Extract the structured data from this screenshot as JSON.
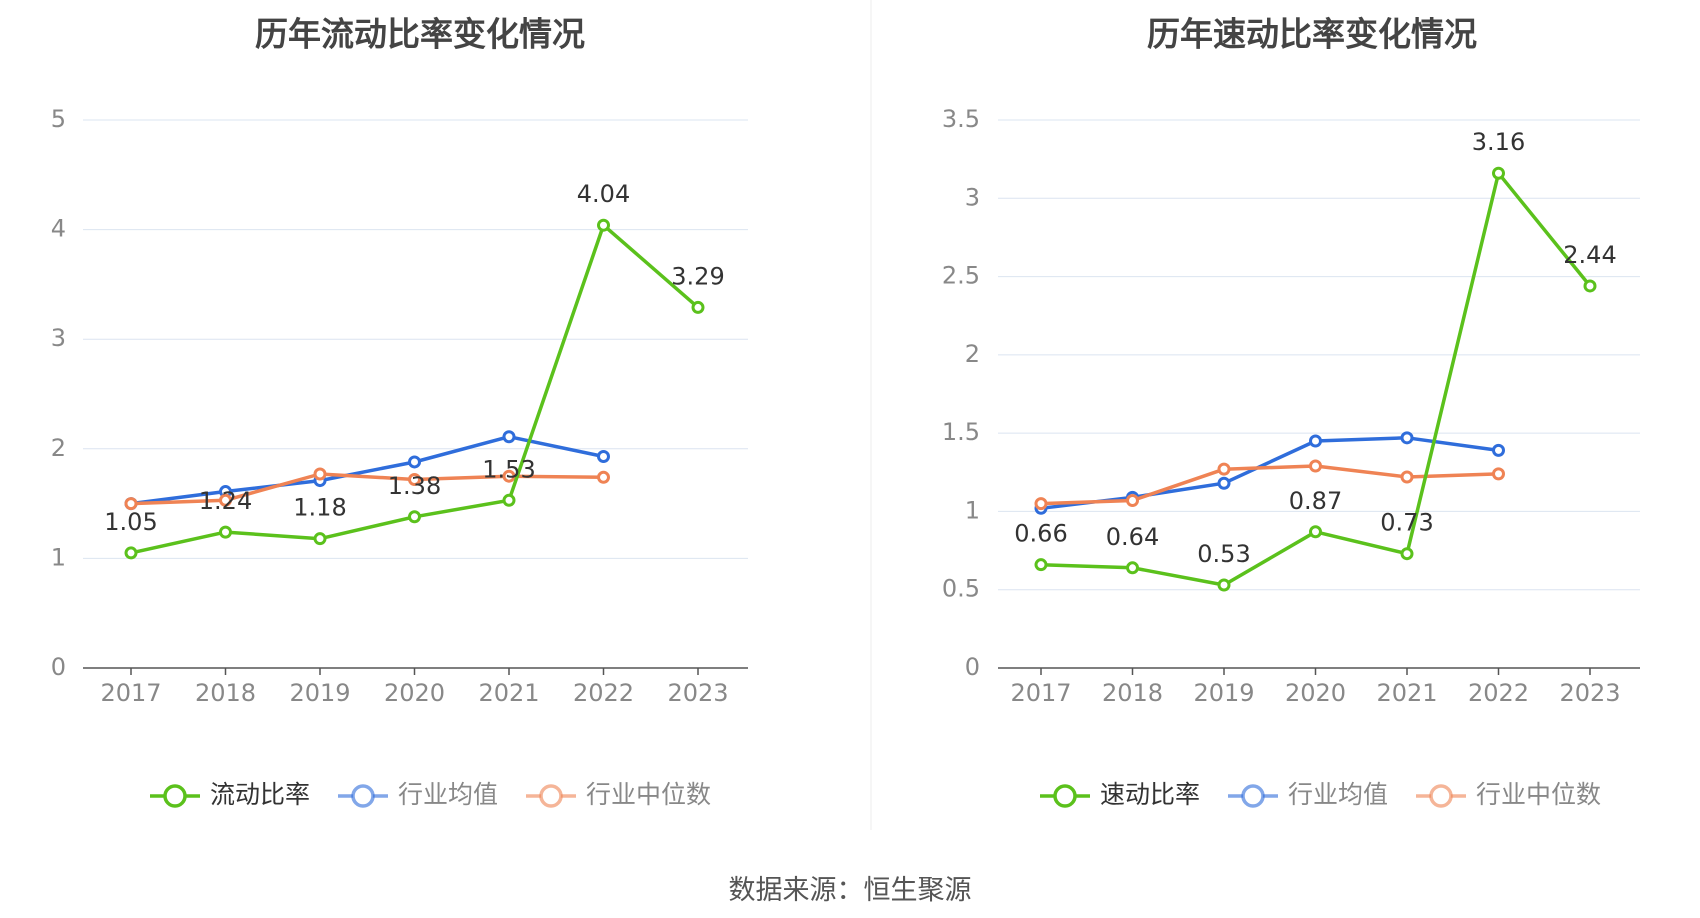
{
  "source_label": "数据来源：恒生聚源",
  "colors": {
    "main": "#5bc11c",
    "avg": "#2f6ddb",
    "median": "#ef8354",
    "grid": "#dbe4f0",
    "axis": "#555555",
    "tick": "#888888",
    "title": "#444444"
  },
  "chart_data": [
    {
      "type": "line",
      "title": "历年流动比率变化情况",
      "categories": [
        "2017",
        "2018",
        "2019",
        "2020",
        "2021",
        "2022",
        "2023"
      ],
      "ylim": [
        0,
        5
      ],
      "yticks": [
        0,
        1,
        2,
        3,
        4,
        5
      ],
      "grid": true,
      "legend_position": "bottom",
      "series": [
        {
          "name": "流动比率",
          "color": "#5bc11c",
          "values": [
            1.05,
            1.24,
            1.18,
            1.38,
            1.53,
            4.04,
            3.29
          ],
          "labels": [
            "1.05",
            "1.24",
            "1.18",
            "1.38",
            "1.53",
            "4.04",
            "3.29"
          ]
        },
        {
          "name": "行业均值",
          "color": "#2f6ddb",
          "values": [
            1.5,
            1.61,
            1.71,
            1.88,
            2.11,
            1.93,
            null
          ]
        },
        {
          "name": "行业中位数",
          "color": "#ef8354",
          "values": [
            1.5,
            1.53,
            1.77,
            1.72,
            1.75,
            1.74,
            null
          ]
        }
      ]
    },
    {
      "type": "line",
      "title": "历年速动比率变化情况",
      "categories": [
        "2017",
        "2018",
        "2019",
        "2020",
        "2021",
        "2022",
        "2023"
      ],
      "ylim": [
        0,
        3.5
      ],
      "yticks": [
        0,
        0.5,
        1,
        1.5,
        2,
        2.5,
        3,
        3.5
      ],
      "grid": true,
      "legend_position": "bottom",
      "series": [
        {
          "name": "速动比率",
          "color": "#5bc11c",
          "values": [
            0.66,
            0.64,
            0.53,
            0.87,
            0.73,
            3.16,
            2.44
          ],
          "labels": [
            "0.66",
            "0.64",
            "0.53",
            "0.87",
            "0.73",
            "3.16",
            "2.44"
          ]
        },
        {
          "name": "行业均值",
          "color": "#2f6ddb",
          "values": [
            1.02,
            1.09,
            1.18,
            1.45,
            1.47,
            1.39,
            null
          ]
        },
        {
          "name": "行业中位数",
          "color": "#ef8354",
          "values": [
            1.05,
            1.07,
            1.27,
            1.29,
            1.22,
            1.24,
            null
          ]
        }
      ]
    }
  ]
}
